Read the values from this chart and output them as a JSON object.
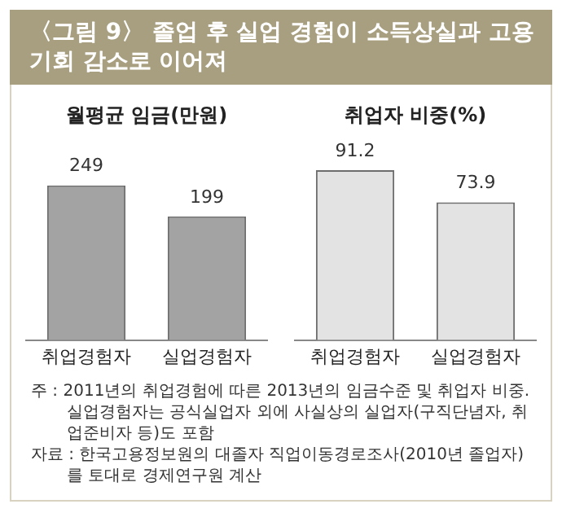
{
  "chart_data": [
    {
      "type": "bar",
      "title": "〈그림 9〉 졸업 후 실업 경험이 소득상실과 고용기회 감소로 이어져",
      "subtitle": "월평균 임금(만원)",
      "categories": [
        "취업경험자",
        "실업경험자"
      ],
      "values": [
        249,
        199
      ],
      "color": "#a3a3a3",
      "data_labels": true,
      "tick_labels": "x",
      "grid": false,
      "legend": false
    },
    {
      "type": "bar",
      "title": "취업자 비중(%)",
      "categories": [
        "취업경험자",
        "실업경험자"
      ],
      "values": [
        91.2,
        73.9
      ],
      "color": "#e3e3e3",
      "data_labels": true,
      "tick_labels": "x",
      "grid": false,
      "legend": false
    },
    {
      "type": "other",
      "annotations": [
        "주 : 2011년의 취업경험에 따른 2013년의 임금수준 및 취업자 비중. 실업경험자는 공식실업자 외에 사실상의 실업자(구직단념자, 취업준비자 등)도 포함",
        "자료 : 한국고용정보원의 대졸자 직업이동경로조사(2010년 졸업자)를 토대로 경제연구원 계산"
      ]
    }
  ]
}
